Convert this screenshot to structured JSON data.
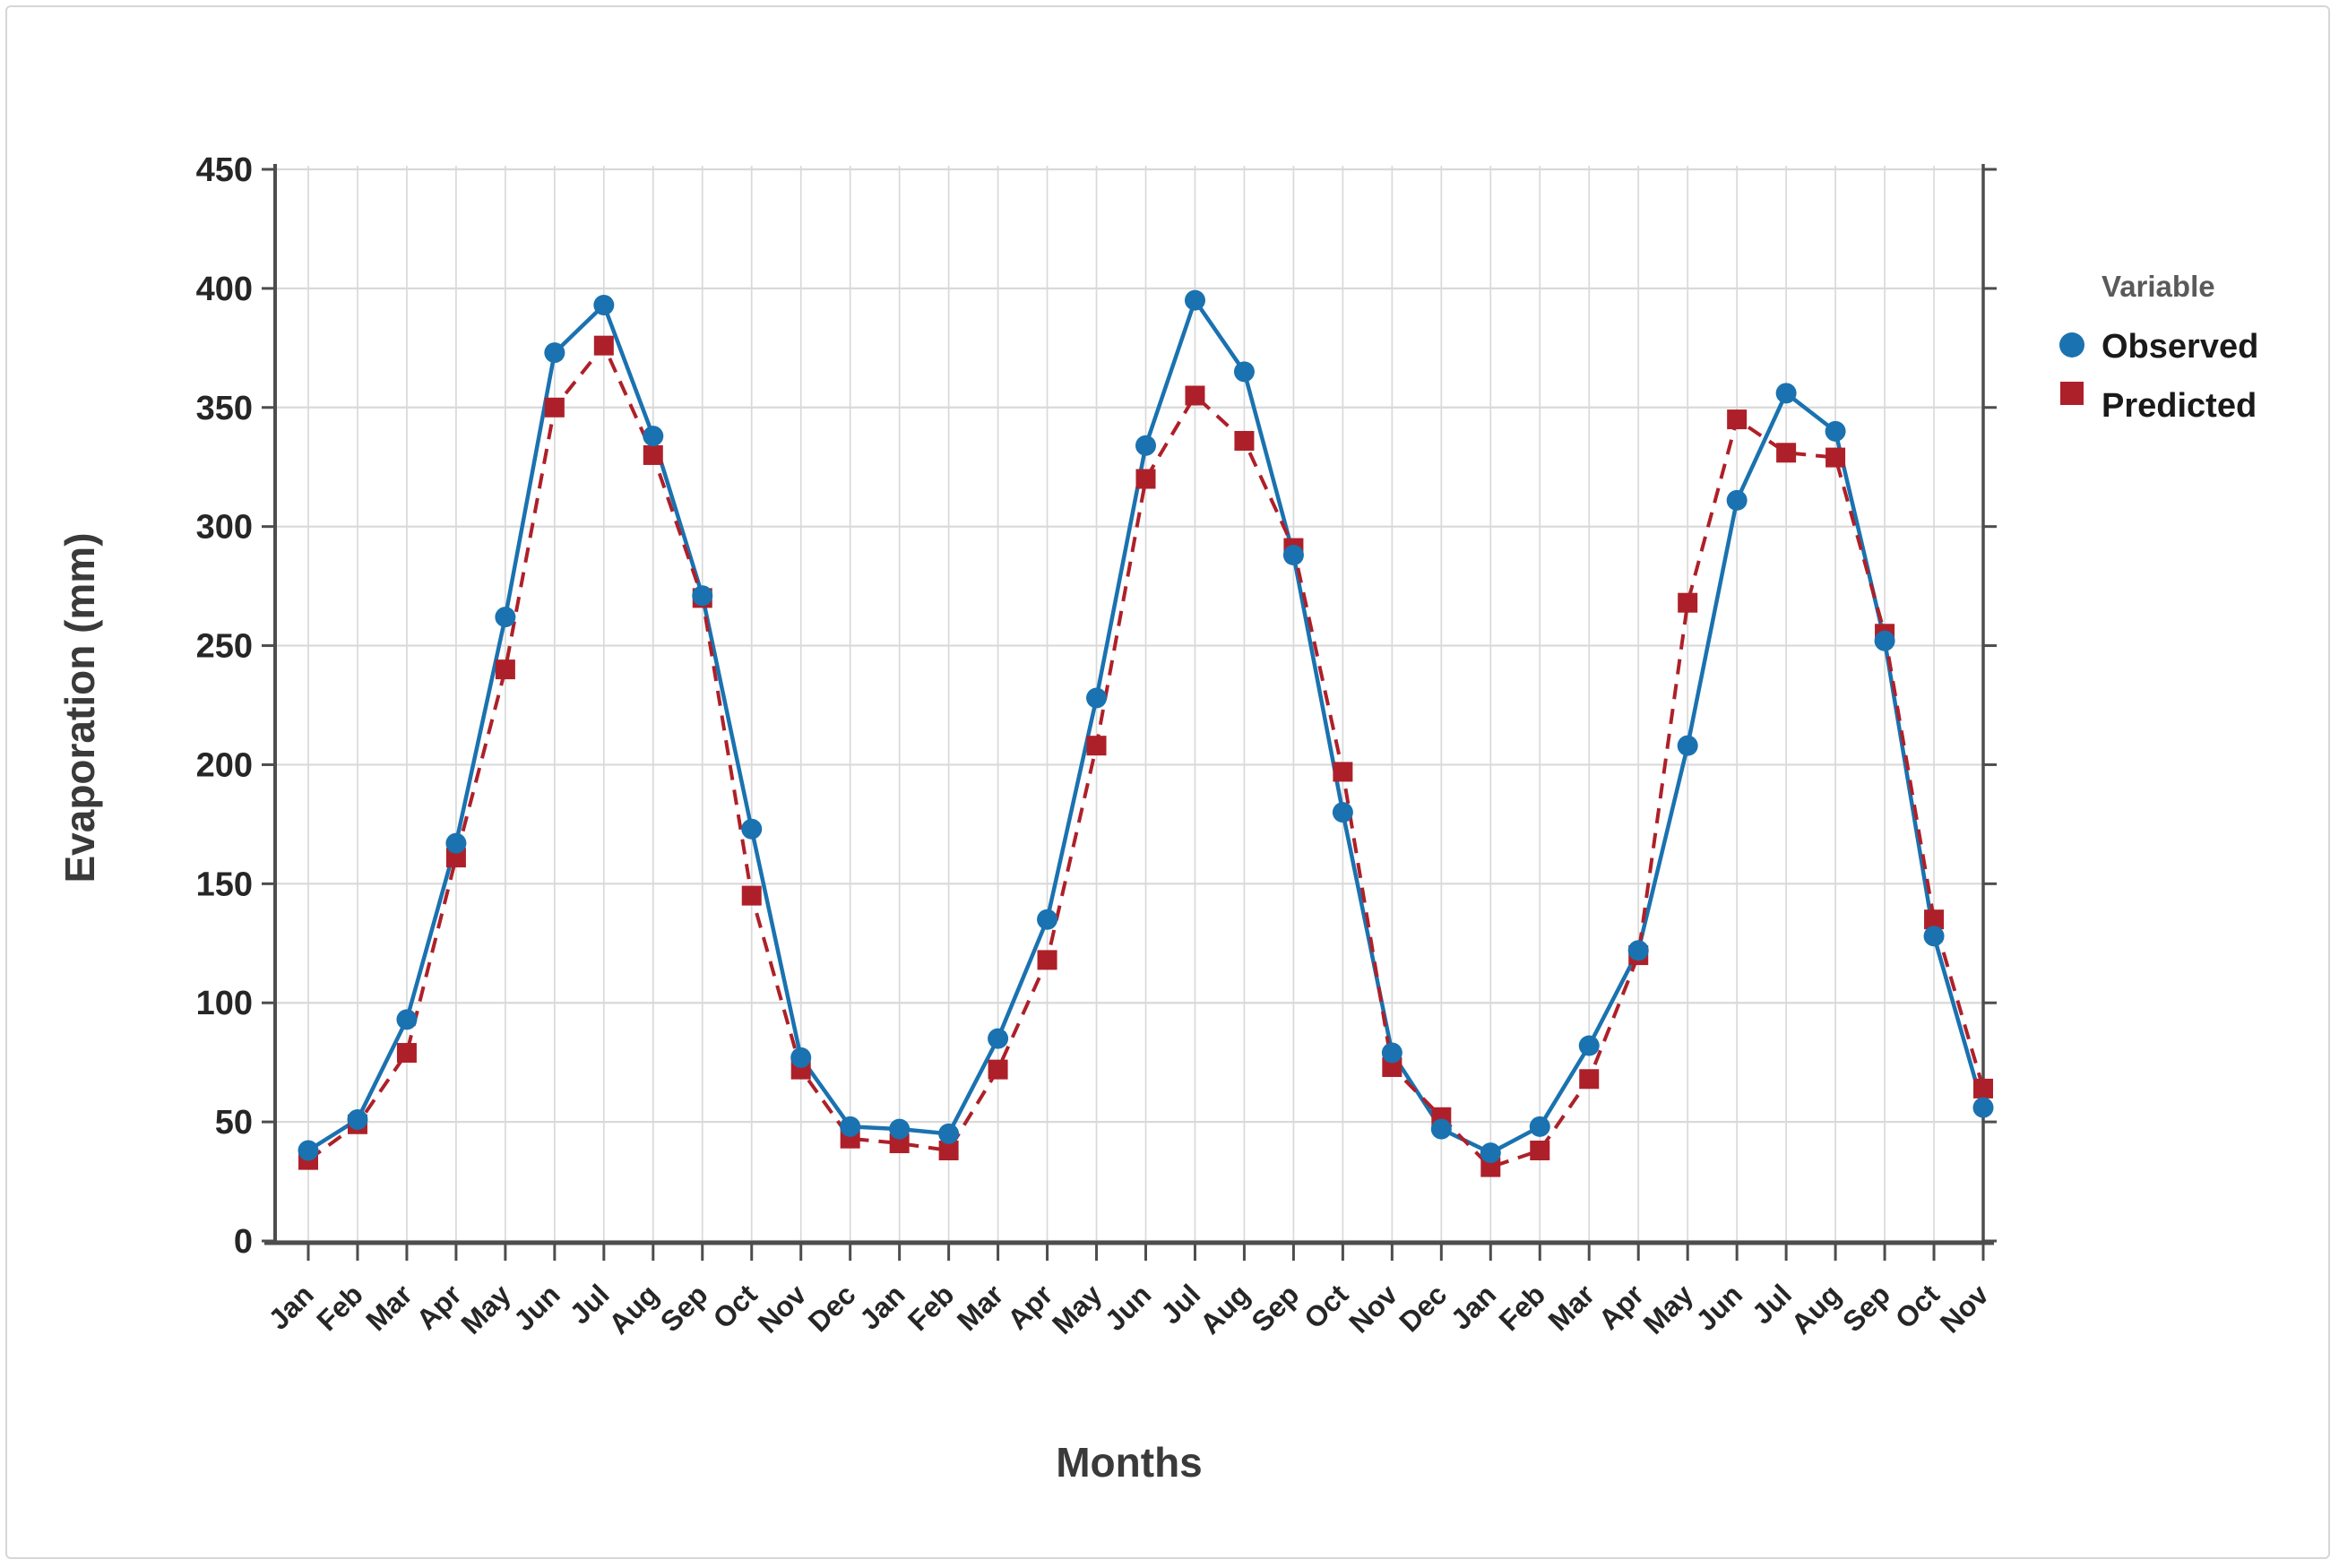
{
  "legend": {
    "title": "Variable",
    "items": [
      {
        "label": "Observed",
        "marker": "circle-icon",
        "color": "#1a72b0"
      },
      {
        "label": "Predicted",
        "marker": "square-icon",
        "color": "#ae2029"
      }
    ]
  },
  "chart_data": {
    "type": "line",
    "title": "",
    "xlabel": "Months",
    "ylabel": "Evaporation (mm)",
    "ylim": [
      0,
      450
    ],
    "ytick_step": 50,
    "yticks": [
      0,
      50,
      100,
      150,
      200,
      250,
      300,
      350,
      400,
      450
    ],
    "grid": true,
    "legend_position": "right",
    "categories": [
      "Jan",
      "Feb",
      "Mar",
      "Apr",
      "May",
      "Jun",
      "Jul",
      "Aug",
      "Sep",
      "Oct",
      "Nov",
      "Dec",
      "Jan",
      "Feb",
      "Mar",
      "Apr",
      "May",
      "Jun",
      "Jul",
      "Aug",
      "Sep",
      "Oct",
      "Nov",
      "Dec",
      "Jan",
      "Feb",
      "Mar",
      "Apr",
      "May",
      "Jun",
      "Jul",
      "Aug",
      "Sep",
      "Oct",
      "Nov"
    ],
    "series": [
      {
        "name": "Observed",
        "color": "#1a72b0",
        "line_style": "solid",
        "marker": "circle",
        "values": [
          38,
          51,
          93,
          167,
          262,
          373,
          393,
          338,
          271,
          173,
          77,
          48,
          47,
          45,
          85,
          135,
          228,
          334,
          395,
          365,
          288,
          180,
          79,
          47,
          37,
          48,
          82,
          122,
          208,
          311,
          356,
          340,
          252,
          128,
          56
        ]
      },
      {
        "name": "Predicted",
        "color": "#ae2029",
        "line_style": "dashed",
        "marker": "square",
        "values": [
          34,
          49,
          79,
          161,
          240,
          350,
          376,
          330,
          270,
          145,
          72,
          43,
          41,
          38,
          72,
          118,
          208,
          320,
          355,
          336,
          291,
          197,
          73,
          52,
          31,
          38,
          68,
          120,
          268,
          345,
          331,
          329,
          255,
          135,
          64
        ]
      }
    ]
  },
  "colors": {
    "grid": "#d9d9d9",
    "axis": "#4d4d4d",
    "background": "#ffffff"
  }
}
